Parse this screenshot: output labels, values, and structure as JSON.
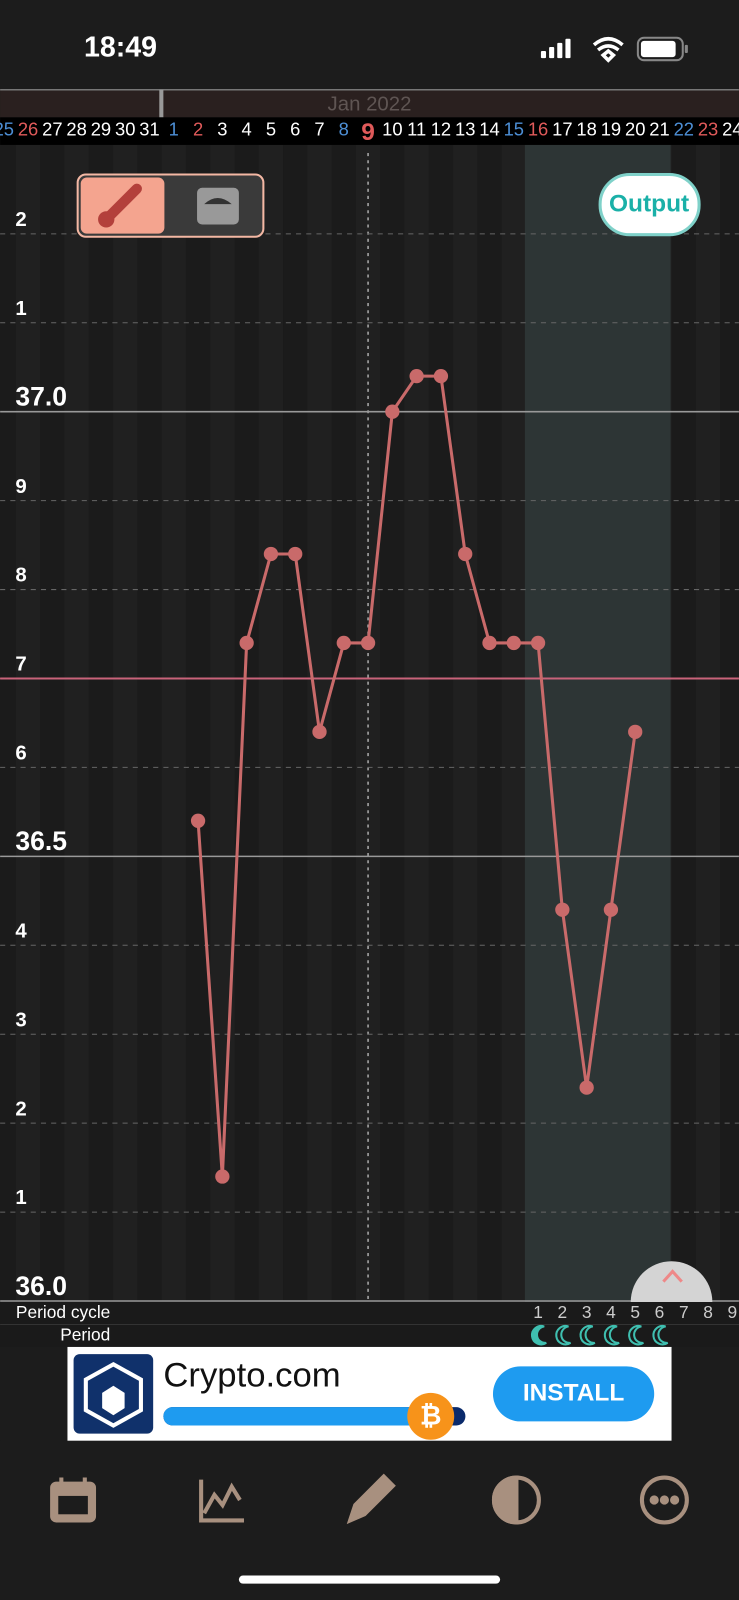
{
  "status_bar": {
    "time": "18:49"
  },
  "header": {
    "month": "Jan 2022"
  },
  "output_button": "Output",
  "chart_data": {
    "type": "line",
    "categories": [
      "25",
      "26",
      "27",
      "28",
      "29",
      "30",
      "31",
      "1",
      "2",
      "3",
      "4",
      "5",
      "6",
      "7",
      "8",
      "9",
      "10",
      "11",
      "12",
      "13",
      "14",
      "15",
      "16",
      "17",
      "18",
      "19",
      "20",
      "21",
      "22",
      "23",
      "24"
    ],
    "series": [
      {
        "color": "#c96a6a",
        "values": [
          null,
          null,
          null,
          null,
          null,
          null,
          null,
          null,
          36.54,
          36.14,
          36.74,
          36.84,
          36.84,
          36.64,
          36.74,
          36.74,
          37.0,
          37.04,
          37.04,
          36.84,
          36.74,
          36.74,
          36.74,
          36.44,
          36.24,
          36.44,
          36.64,
          null,
          null,
          null,
          null
        ]
      }
    ],
    "ylim": [
      36.0,
      37.3
    ],
    "yticks": [
      {
        "value": 36.0,
        "label": "36.0"
      },
      {
        "value": 36.1,
        "label": "1"
      },
      {
        "value": 36.2,
        "label": "2"
      },
      {
        "value": 36.3,
        "label": "3"
      },
      {
        "value": 36.4,
        "label": "4"
      },
      36.5,
      {
        "value": 36.6,
        "label": "6"
      },
      {
        "value": 36.7,
        "label": "7"
      },
      {
        "value": 36.8,
        "label": "8"
      },
      {
        "value": 36.9,
        "label": "9"
      },
      {
        "value": 37.0,
        "label": "37.0"
      },
      {
        "value": 37.1,
        "label": "1"
      },
      {
        "value": 37.2,
        "label": "2"
      }
    ],
    "coverline": 36.7,
    "grid": true
  },
  "period_rows": {
    "labels": [
      "Period cycle",
      "Period"
    ],
    "cycle_days": [
      1,
      2,
      3,
      4,
      5,
      6,
      7,
      8,
      9
    ]
  },
  "ad": {
    "brand": "Crypto.com",
    "button": "INSTALL"
  }
}
